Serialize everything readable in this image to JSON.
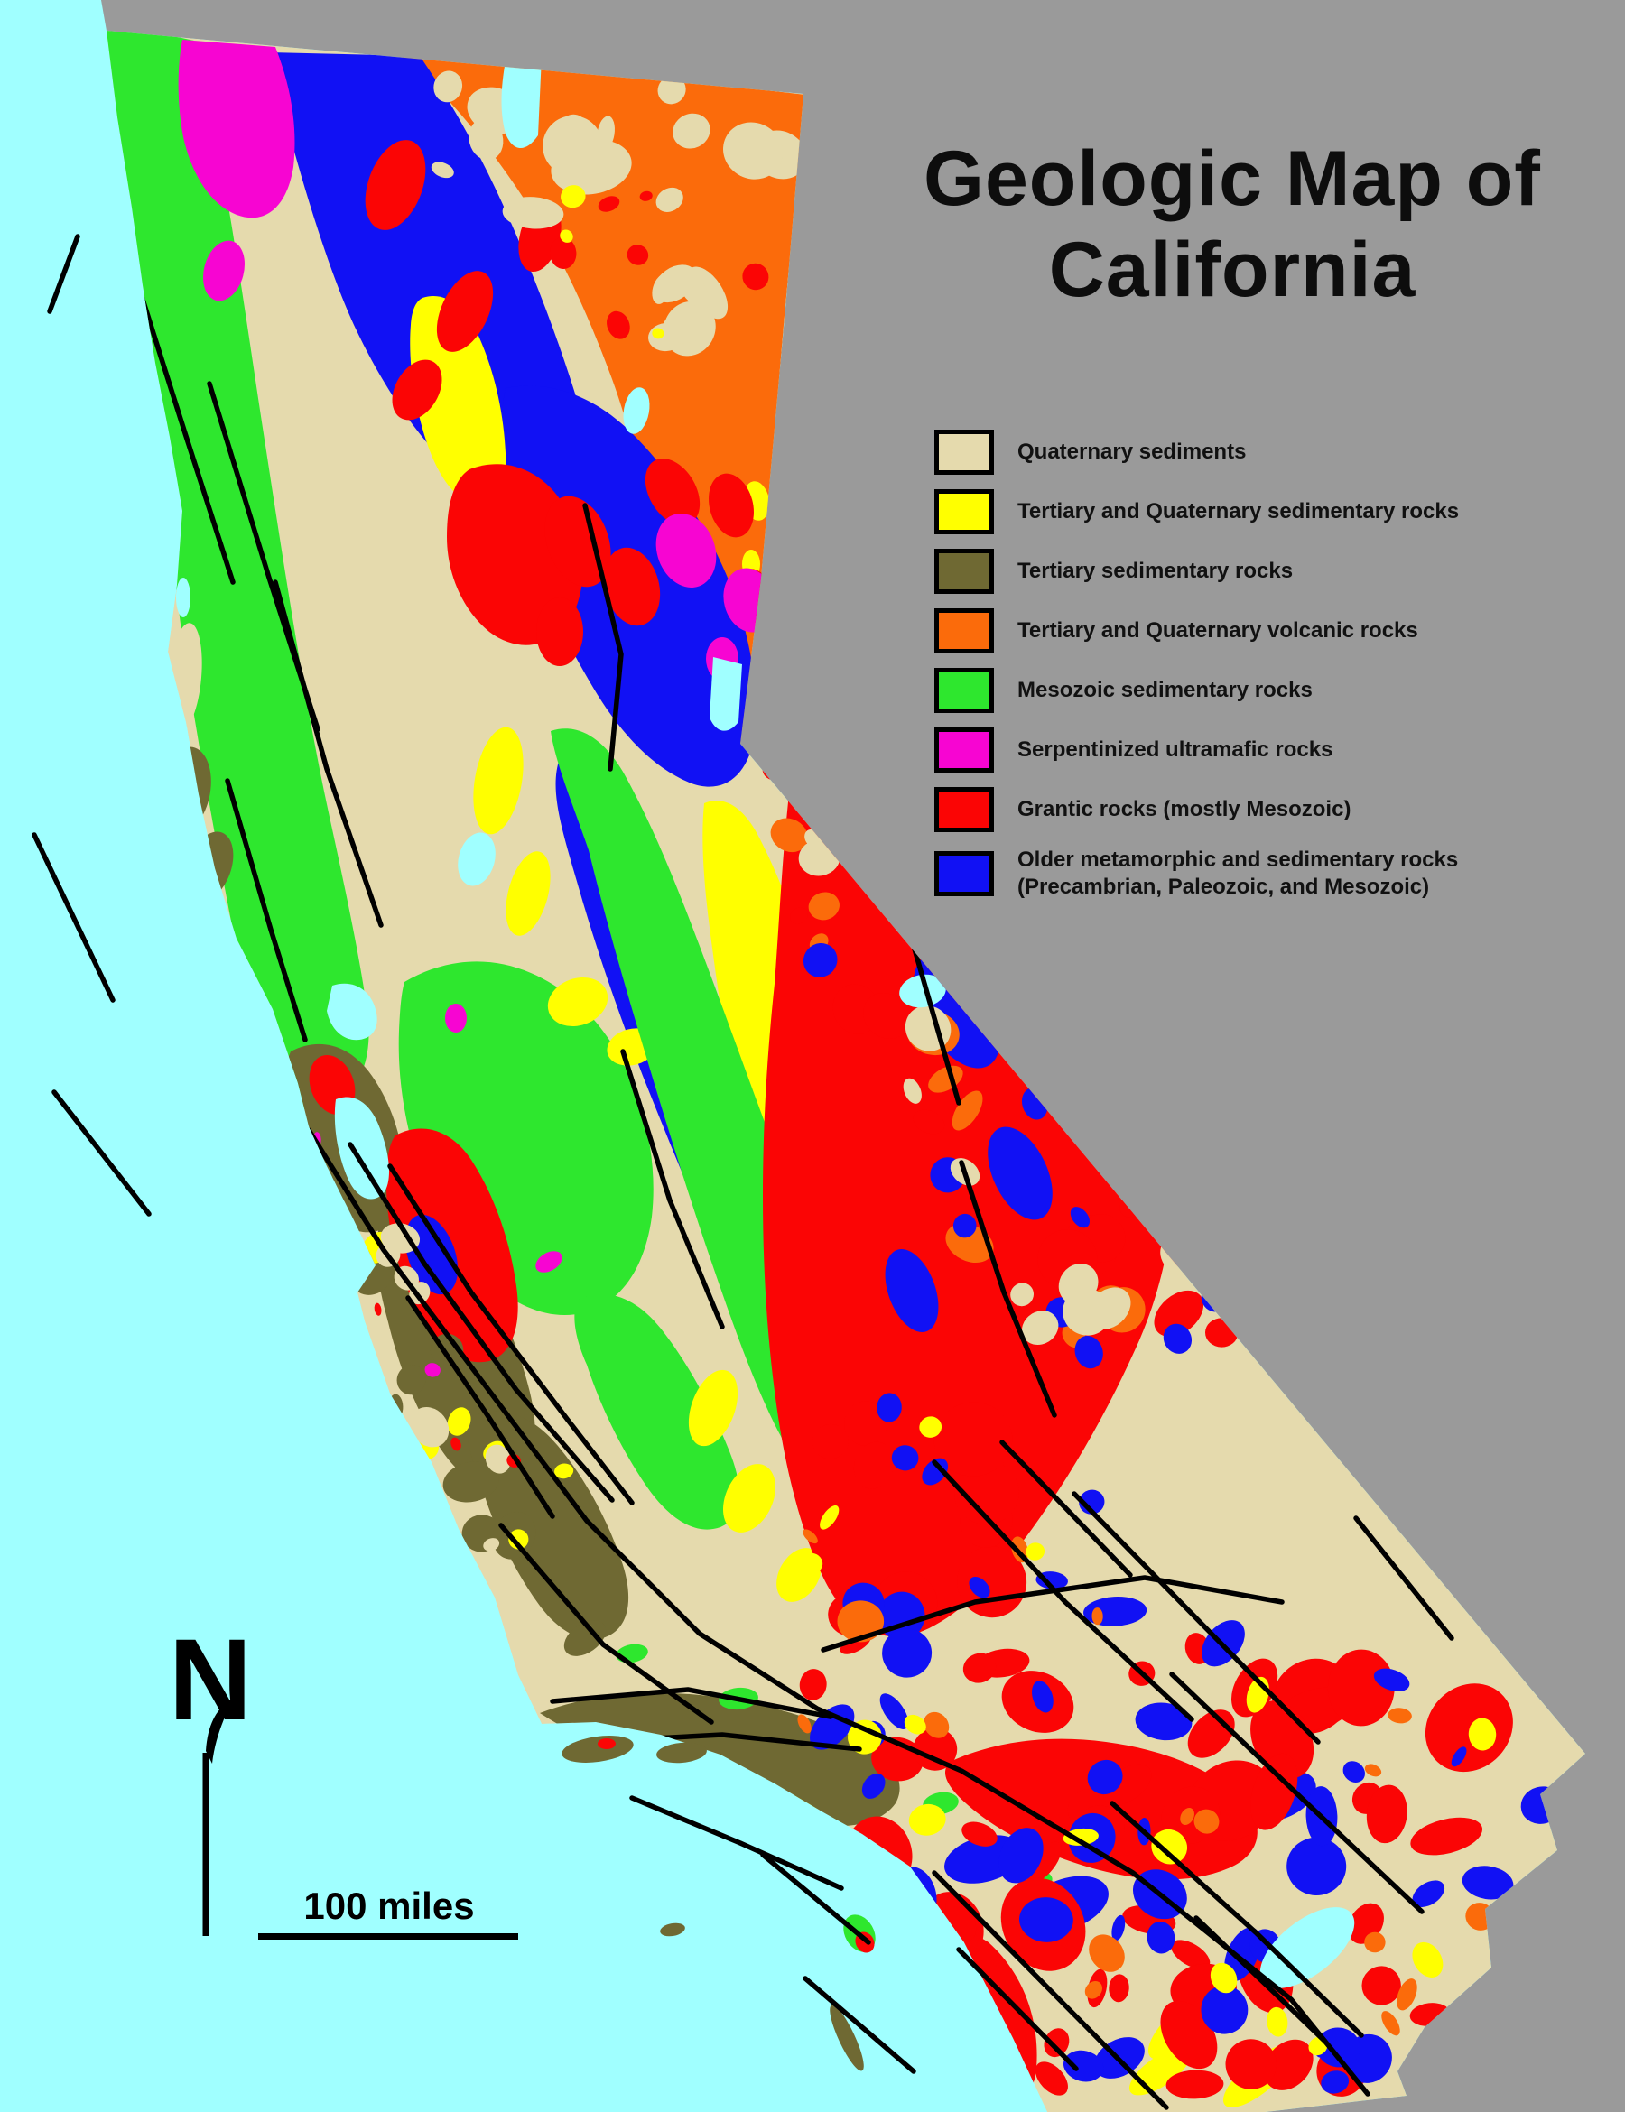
{
  "title": "Geologic Map of\nCalifornia",
  "north_label": "N",
  "scale": {
    "label": "100 miles"
  },
  "colors": {
    "ocean": "#A0FFFF",
    "outside_state": "#9A9A9A",
    "state_base": "#E5DAAD",
    "fault_lines": "#000000"
  },
  "legend": {
    "items": [
      {
        "label": "Quaternary sediments",
        "color": "#E5DAAD"
      },
      {
        "label": "Tertiary and Quaternary sedimentary rocks",
        "color": "#FFFF00"
      },
      {
        "label": "Tertiary sedimentary rocks",
        "color": "#6F6933"
      },
      {
        "label": "Tertiary and Quaternary volcanic rocks",
        "color": "#FB6B0B"
      },
      {
        "label": "Mesozoic sedimentary rocks",
        "color": "#2EE72E"
      },
      {
        "label": "Serpentinized ultramafic rocks",
        "color": "#F705D2"
      },
      {
        "label": "Grantic rocks (mostly Mesozoic)",
        "color": "#FB0505"
      },
      {
        "label": "Older metamorphic and sedimentary rocks\n(Precambrian, Paleozoic, and Mesozoic)",
        "color": "#1111F4"
      }
    ]
  }
}
